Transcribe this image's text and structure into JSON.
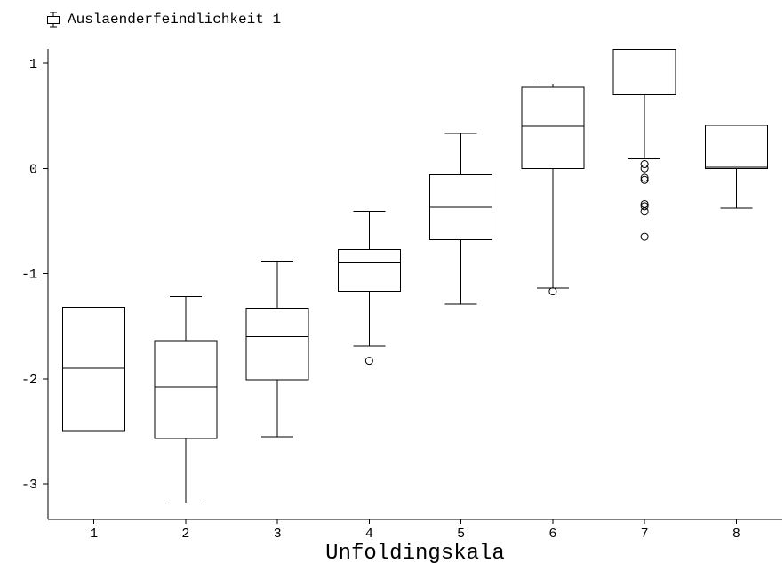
{
  "chart_data": {
    "type": "box",
    "title": "",
    "xlabel": "Unfoldingskala",
    "ylabel": "",
    "legend": {
      "entries": [
        "Auslaenderfeindlichkeit 1"
      ],
      "placement": "top-left"
    },
    "ylim": [
      -3.35,
      1.15
    ],
    "yticks": [
      "1",
      "0",
      "-1",
      "-2",
      "-3"
    ],
    "ytick_values": [
      1,
      0,
      -1,
      -2,
      -3
    ],
    "grid": false,
    "series": [
      {
        "name": "Auslaenderfeindlichkeit 1",
        "boxes": [
          {
            "category": "1",
            "whisker_low": -2.5,
            "q1": -2.5,
            "median": -1.9,
            "q3": -1.32,
            "whisker_high": -1.32,
            "outliers": []
          },
          {
            "category": "2",
            "whisker_low": -3.18,
            "q1": -2.57,
            "median": -2.08,
            "q3": -1.64,
            "whisker_high": -1.22,
            "outliers": []
          },
          {
            "category": "3",
            "whisker_low": -2.55,
            "q1": -2.01,
            "median": -1.6,
            "q3": -1.33,
            "whisker_high": -0.89,
            "outliers": []
          },
          {
            "category": "4",
            "whisker_low": -1.69,
            "q1": -1.17,
            "median": -0.9,
            "q3": -0.77,
            "whisker_high": -0.41,
            "outliers": [
              -1.83
            ]
          },
          {
            "category": "5",
            "whisker_low": -1.29,
            "q1": -0.68,
            "median": -0.37,
            "q3": -0.06,
            "whisker_high": 0.33,
            "outliers": []
          },
          {
            "category": "6",
            "whisker_low": -1.14,
            "q1": 0.0,
            "median": 0.4,
            "q3": 0.77,
            "whisker_high": 0.8,
            "outliers": [
              -1.17
            ]
          },
          {
            "category": "7",
            "whisker_low": 0.09,
            "q1": 0.7,
            "median": 1.13,
            "q3": 1.13,
            "whisker_high": 1.13,
            "outliers": [
              0.04,
              0.0,
              -0.09,
              -0.11,
              -0.34,
              -0.36,
              -0.41,
              -0.65
            ]
          },
          {
            "category": "8",
            "whisker_low": -0.38,
            "q1": 0.0,
            "median": 0.01,
            "q3": 0.41,
            "whisker_high": 0.41,
            "outliers": []
          }
        ]
      }
    ]
  }
}
